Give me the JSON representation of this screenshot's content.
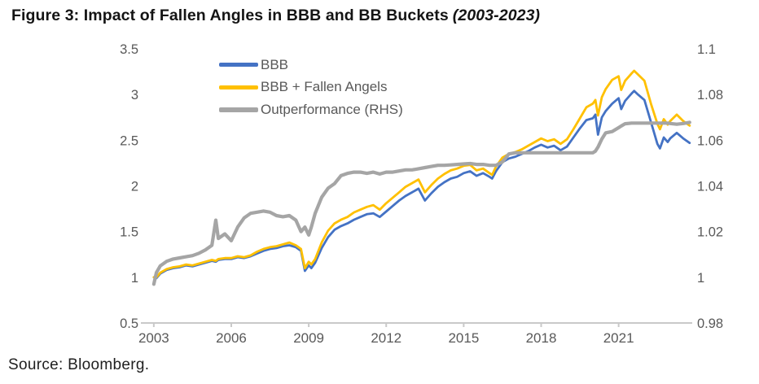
{
  "title": {
    "main": "Figure 3: Impact of Fallen Angles in BBB and BB Buckets",
    "period": "(2003-2023)"
  },
  "source": "Source: Bloomberg.",
  "colors": {
    "bbb_blue": "#4472C4",
    "fallen_angels_gold": "#FFC000",
    "outperformance_gray": "#A5A5A5",
    "axis_line": "#C9C9C9",
    "axis_text": "#595959",
    "title_text": "#141414"
  },
  "chart_data": {
    "type": "line",
    "title": "Figure 3: Impact of Fallen Angles in BBB and BB Buckets (2003-2023)",
    "grid": false,
    "legend_position": "top-left-inside",
    "x_axis": {
      "min": 2002.5,
      "max": 2023.85,
      "tick_years": [
        2003,
        2006,
        2009,
        2012,
        2015,
        2018,
        2021
      ]
    },
    "left_axis": {
      "min": 0.5,
      "max": 3.5,
      "ticks": [
        3.5,
        3,
        2.5,
        2,
        1.5,
        1,
        0.5
      ],
      "labels": [
        "3.5",
        "3",
        "2.5",
        "2",
        "1.5",
        "1",
        "0.5"
      ]
    },
    "right_axis": {
      "min": 0.98,
      "max": 1.1,
      "ticks": [
        1.1,
        1.08,
        1.06,
        1.04,
        1.02,
        1,
        0.98
      ],
      "labels": [
        "1.1",
        "1.08",
        "1.06",
        "1.04",
        "1.02",
        "1",
        "0.98"
      ]
    },
    "x": [
      2003.0,
      2003.1,
      2003.25,
      2003.5,
      2003.75,
      2004.0,
      2004.25,
      2004.5,
      2004.75,
      2005.0,
      2005.25,
      2005.4,
      2005.5,
      2005.75,
      2006.0,
      2006.25,
      2006.5,
      2006.75,
      2007.0,
      2007.25,
      2007.5,
      2007.75,
      2008.0,
      2008.25,
      2008.5,
      2008.7,
      2008.85,
      2009.0,
      2009.1,
      2009.25,
      2009.5,
      2009.75,
      2010.0,
      2010.25,
      2010.5,
      2010.75,
      2011.0,
      2011.25,
      2011.5,
      2011.75,
      2012.0,
      2012.25,
      2012.5,
      2012.75,
      2013.0,
      2013.25,
      2013.5,
      2013.75,
      2014.0,
      2014.25,
      2014.5,
      2014.75,
      2015.0,
      2015.25,
      2015.5,
      2015.75,
      2016.0,
      2016.1,
      2016.25,
      2016.5,
      2016.75,
      2017.0,
      2017.25,
      2017.5,
      2017.75,
      2018.0,
      2018.25,
      2018.5,
      2018.75,
      2019.0,
      2019.25,
      2019.5,
      2019.75,
      2020.0,
      2020.1,
      2020.2,
      2020.35,
      2020.5,
      2020.75,
      2021.0,
      2021.1,
      2021.25,
      2021.5,
      2021.6,
      2021.75,
      2022.0,
      2022.25,
      2022.5,
      2022.6,
      2022.75,
      2022.9,
      2023.0,
      2023.25,
      2023.5,
      2023.75
    ],
    "series": [
      {
        "name": "BBB",
        "axis": "left",
        "color": "#4472C4",
        "width": 2.8,
        "values": [
          1.0,
          0.99,
          1.04,
          1.08,
          1.1,
          1.11,
          1.13,
          1.12,
          1.14,
          1.16,
          1.18,
          1.17,
          1.19,
          1.2,
          1.2,
          1.22,
          1.21,
          1.23,
          1.26,
          1.29,
          1.31,
          1.32,
          1.34,
          1.35,
          1.33,
          1.29,
          1.07,
          1.13,
          1.1,
          1.16,
          1.32,
          1.44,
          1.52,
          1.56,
          1.59,
          1.63,
          1.66,
          1.69,
          1.7,
          1.66,
          1.72,
          1.78,
          1.84,
          1.89,
          1.93,
          1.97,
          1.84,
          1.92,
          1.99,
          2.04,
          2.08,
          2.1,
          2.14,
          2.16,
          2.11,
          2.14,
          2.1,
          2.08,
          2.16,
          2.26,
          2.3,
          2.32,
          2.35,
          2.38,
          2.42,
          2.45,
          2.42,
          2.44,
          2.39,
          2.43,
          2.53,
          2.63,
          2.72,
          2.74,
          2.78,
          2.56,
          2.75,
          2.82,
          2.9,
          2.96,
          2.84,
          2.93,
          3.01,
          3.04,
          3.0,
          2.94,
          2.7,
          2.46,
          2.41,
          2.53,
          2.48,
          2.52,
          2.58,
          2.52,
          2.47
        ]
      },
      {
        "name": "BBB + Fallen Angels",
        "axis": "left",
        "color": "#FFC000",
        "width": 2.8,
        "values": [
          1.0,
          1.0,
          1.05,
          1.09,
          1.11,
          1.12,
          1.14,
          1.13,
          1.15,
          1.17,
          1.19,
          1.18,
          1.2,
          1.21,
          1.21,
          1.23,
          1.22,
          1.24,
          1.28,
          1.31,
          1.33,
          1.34,
          1.36,
          1.38,
          1.35,
          1.31,
          1.1,
          1.17,
          1.14,
          1.2,
          1.38,
          1.51,
          1.59,
          1.63,
          1.66,
          1.71,
          1.74,
          1.77,
          1.79,
          1.74,
          1.81,
          1.87,
          1.93,
          1.99,
          2.03,
          2.07,
          1.93,
          2.01,
          2.08,
          2.13,
          2.17,
          2.19,
          2.22,
          2.23,
          2.17,
          2.19,
          2.14,
          2.12,
          2.21,
          2.31,
          2.35,
          2.37,
          2.4,
          2.44,
          2.48,
          2.52,
          2.49,
          2.51,
          2.46,
          2.51,
          2.62,
          2.74,
          2.86,
          2.9,
          2.94,
          2.77,
          2.97,
          3.06,
          3.16,
          3.2,
          3.05,
          3.15,
          3.23,
          3.26,
          3.22,
          3.15,
          2.9,
          2.68,
          2.62,
          2.73,
          2.67,
          2.71,
          2.78,
          2.71,
          2.66
        ]
      },
      {
        "name": "Outperformance (RHS)",
        "axis": "right",
        "color": "#A5A5A5",
        "width": 4.2,
        "values": [
          0.997,
          1.002,
          1.005,
          1.007,
          1.008,
          1.0085,
          1.009,
          1.0095,
          1.0105,
          1.012,
          1.014,
          1.025,
          1.017,
          1.019,
          1.016,
          1.022,
          1.026,
          1.028,
          1.0285,
          1.029,
          1.0285,
          1.027,
          1.0265,
          1.027,
          1.025,
          1.02,
          1.022,
          1.0185,
          1.022,
          1.028,
          1.035,
          1.039,
          1.041,
          1.0445,
          1.0455,
          1.046,
          1.046,
          1.0455,
          1.046,
          1.0452,
          1.046,
          1.046,
          1.0465,
          1.047,
          1.047,
          1.0475,
          1.048,
          1.0485,
          1.049,
          1.049,
          1.0492,
          1.0494,
          1.0496,
          1.0498,
          1.0494,
          1.0494,
          1.049,
          1.049,
          1.049,
          1.0505,
          1.054,
          1.0545,
          1.0545,
          1.0545,
          1.0545,
          1.0545,
          1.0545,
          1.0545,
          1.0545,
          1.0545,
          1.0545,
          1.0545,
          1.0545,
          1.0545,
          1.0552,
          1.057,
          1.0605,
          1.0632,
          1.0638,
          1.0655,
          1.0662,
          1.0672,
          1.0675,
          1.0675,
          1.0675,
          1.0675,
          1.0675,
          1.0675,
          1.0675,
          1.0675,
          1.0675,
          1.0673,
          1.067,
          1.0673,
          1.0678
        ]
      }
    ]
  }
}
